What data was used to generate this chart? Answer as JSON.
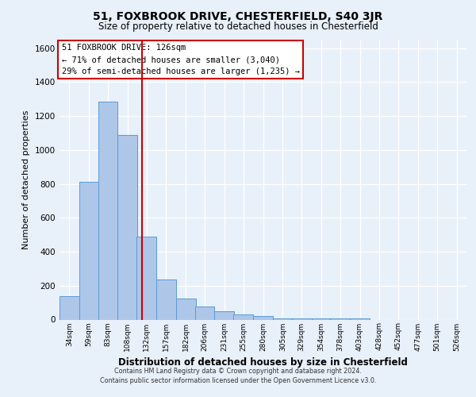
{
  "title": "51, FOXBROOK DRIVE, CHESTERFIELD, S40 3JR",
  "subtitle": "Size of property relative to detached houses in Chesterfield",
  "xlabel": "Distribution of detached houses by size in Chesterfield",
  "ylabel": "Number of detached properties",
  "bar_values": [
    140,
    810,
    1285,
    1090,
    490,
    235,
    125,
    75,
    50,
    30,
    20,
    5,
    5,
    5,
    5,
    5
  ],
  "bin_centers": [
    34,
    59,
    83,
    108,
    132,
    157,
    182,
    206,
    231,
    255,
    280,
    305,
    329,
    354,
    378,
    403
  ],
  "bin_labels": [
    "34sqm",
    "59sqm",
    "83sqm",
    "108sqm",
    "132sqm",
    "157sqm",
    "182sqm",
    "206sqm",
    "231sqm",
    "255sqm",
    "280sqm",
    "305sqm",
    "329sqm",
    "354sqm",
    "378sqm",
    "403sqm",
    "428sqm",
    "452sqm",
    "477sqm",
    "501sqm",
    "526sqm"
  ],
  "all_xtick_centers": [
    34,
    59,
    83,
    108,
    132,
    157,
    182,
    206,
    231,
    255,
    280,
    305,
    329,
    354,
    378,
    403,
    428,
    452,
    477,
    501,
    526
  ],
  "bin_width": 25,
  "bar_color": "#aec6e8",
  "bar_edge_color": "#5b9bd5",
  "background_color": "#e8f0fa",
  "plot_bg_color": "#e8f0fa",
  "grid_color": "#ffffff",
  "marker_x": 126,
  "marker_color": "#cc0000",
  "annotation_text": "51 FOXBROOK DRIVE: 126sqm\n← 71% of detached houses are smaller (3,040)\n29% of semi-detached houses are larger (1,235) →",
  "annotation_box_color": "#ffffff",
  "annotation_box_edge": "#cc0000",
  "ylim": [
    0,
    1650
  ],
  "yticks": [
    0,
    200,
    400,
    600,
    800,
    1000,
    1200,
    1400,
    1600
  ],
  "xlim_left": 21.5,
  "xlim_right": 538.5,
  "footer1": "Contains HM Land Registry data © Crown copyright and database right 2024.",
  "footer2": "Contains public sector information licensed under the Open Government Licence v3.0."
}
